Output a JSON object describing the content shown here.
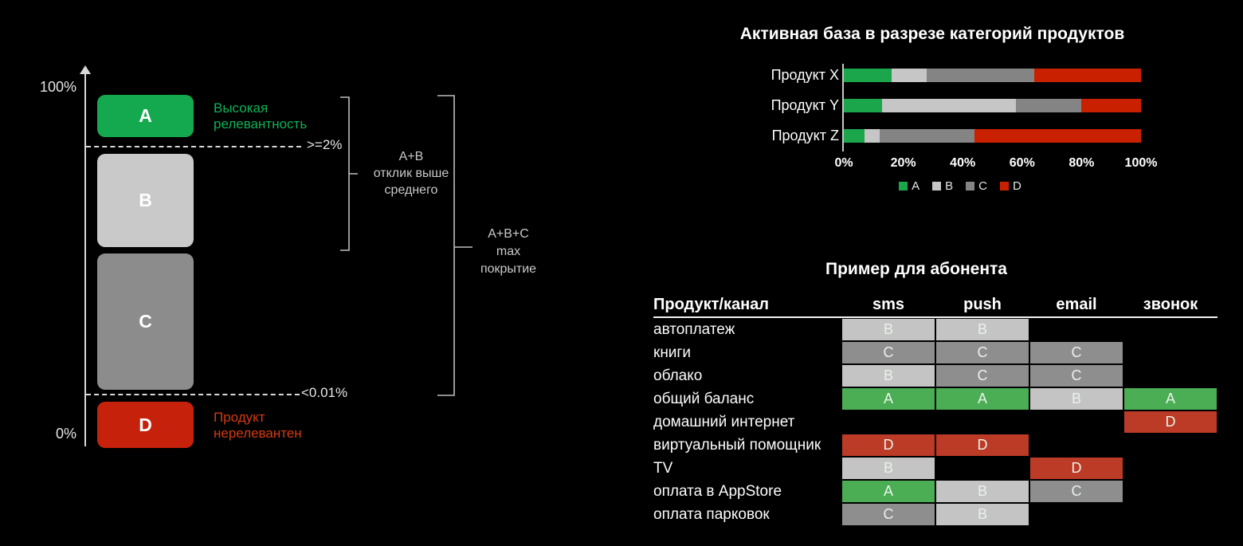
{
  "slide": {
    "background": "#000000"
  },
  "funnel": {
    "axis_max_label": "100%",
    "axis_min_label": "0%",
    "boxes": [
      {
        "id": "A",
        "label": "A",
        "color": "#14A94F"
      },
      {
        "id": "B",
        "label": "B",
        "color": "#C9C9C9"
      },
      {
        "id": "C",
        "label": "C",
        "color": "#8C8C8C"
      },
      {
        "id": "D",
        "label": "D",
        "color": "#C6220B"
      }
    ],
    "threshold_high": ">=2%",
    "threshold_low": "<0.01%",
    "high_label": "Высокая релевантность",
    "high_label_color": "#0CB257",
    "low_label": "Продукт нерелевантен",
    "low_label_color": "#D43A0F",
    "bracket_ab_label": "A+B\nотклик выше\nсреднего",
    "bracket_abc_label": "A+B+C\nmax\nпокрытие"
  },
  "chart_data": {
    "type": "bar",
    "orientation": "horizontal-stacked",
    "title": "Активная база в разрезе категорий продуктов",
    "categories": [
      "Продукт X",
      "Продукт Y",
      "Продукт Z"
    ],
    "series": [
      {
        "name": "A",
        "color": "#1CA64B",
        "values": [
          16,
          13,
          7
        ]
      },
      {
        "name": "B",
        "color": "#C6C6C6",
        "values": [
          12,
          45,
          5
        ]
      },
      {
        "name": "C",
        "color": "#848484",
        "values": [
          36,
          22,
          32
        ]
      },
      {
        "name": "D",
        "color": "#C92100",
        "values": [
          36,
          20,
          56
        ]
      }
    ],
    "xlim": [
      0,
      100
    ],
    "x_ticks": [
      "0%",
      "20%",
      "40%",
      "60%",
      "80%",
      "100%"
    ],
    "grid": false,
    "legend_position": "bottom"
  },
  "table": {
    "title": "Пример для абонента",
    "headers": [
      "Продукт/канал",
      "sms",
      "push",
      "email",
      "звонок"
    ],
    "category_colors": {
      "A": "#4CAE54",
      "B": "#C4C4C4",
      "C": "#8E8E8E",
      "D": "#BB3B26"
    },
    "rows": [
      {
        "label": "автоплатеж",
        "cells": [
          "B",
          "B",
          "",
          ""
        ]
      },
      {
        "label": "книги",
        "cells": [
          "C",
          "C",
          "C",
          ""
        ]
      },
      {
        "label": "облако",
        "cells": [
          "B",
          "C",
          "C",
          ""
        ]
      },
      {
        "label": "общий баланс",
        "cells": [
          "A",
          "A",
          "B",
          "A"
        ]
      },
      {
        "label": "домашний интернет",
        "cells": [
          "",
          "",
          "",
          "D"
        ]
      },
      {
        "label": "виртуальный помощник",
        "cells": [
          "D",
          "D",
          "",
          ""
        ]
      },
      {
        "label": "TV",
        "cells": [
          "B",
          "",
          "D",
          ""
        ]
      },
      {
        "label": "оплата в AppStore",
        "cells": [
          "A",
          "B",
          "C",
          ""
        ]
      },
      {
        "label": "оплата парковок",
        "cells": [
          "C",
          "B",
          "",
          ""
        ]
      }
    ]
  }
}
